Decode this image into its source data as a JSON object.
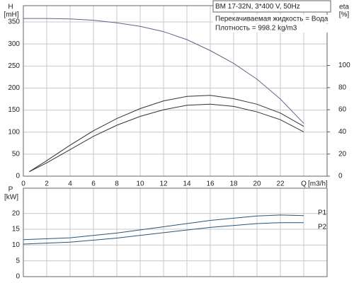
{
  "chart_data": [
    {
      "type": "line",
      "title": "BM 17-32N, 3*400 V, 50Hz",
      "annotations": [
        "Перекачиваемая жидкость = Вода",
        "Плотность = 998.2 kg/m3"
      ],
      "ylabel": "H",
      "yunit": "[mH]",
      "y2label": "eta",
      "y2unit": "[%]",
      "xunit": "[m3/h]",
      "xlim": [
        0,
        26
      ],
      "xticks": [
        0,
        2,
        4,
        6,
        8,
        10,
        12,
        14,
        16,
        18,
        20,
        22,
        {
          "value": 24,
          "label": "Q"
        }
      ],
      "ylim": [
        0,
        387
      ],
      "yticks": [
        0,
        50,
        100,
        150,
        200,
        250,
        300,
        350
      ],
      "y2lim": [
        0,
        154
      ],
      "y2ticks": [
        0,
        20,
        40,
        60,
        80,
        100
      ],
      "grid": true,
      "series": [
        {
          "color": "#5f6688",
          "x": [
            0,
            2,
            4,
            6,
            8,
            10,
            12,
            14,
            16,
            18,
            20,
            22,
            24
          ],
          "values": [
            358,
            358,
            357,
            354,
            348,
            340,
            328,
            310,
            285,
            256,
            220,
            175,
            120
          ]
        },
        {
          "color": "#333333",
          "axis": "y2",
          "x": [
            0.5,
            2,
            4,
            6,
            8,
            10,
            12,
            14,
            16,
            18,
            20,
            22,
            24
          ],
          "values": [
            4,
            14,
            28,
            41,
            52,
            61,
            68,
            72,
            73,
            70,
            65,
            57,
            45
          ]
        },
        {
          "color": "#333333",
          "axis": "y2",
          "x": [
            0.5,
            2,
            4,
            6,
            8,
            10,
            12,
            14,
            16,
            18,
            20,
            22,
            24
          ],
          "values": [
            4,
            12,
            24,
            36,
            46,
            54,
            60,
            64,
            65,
            63,
            58,
            51,
            40
          ]
        }
      ]
    },
    {
      "type": "line",
      "ylabel": "P",
      "yunit": "[kW]",
      "xlim": [
        0,
        26
      ],
      "xticks": [
        0,
        2,
        4,
        6,
        8,
        10,
        12,
        14,
        16,
        18,
        20,
        22,
        24
      ],
      "xtick_labels": false,
      "ylim": [
        0,
        28
      ],
      "yticks": [
        0,
        5,
        10,
        15,
        20
      ],
      "grid": true,
      "series": [
        {
          "name": "P1",
          "color": "#2b5575",
          "x": [
            0,
            4,
            8,
            12,
            16,
            20,
            22,
            24
          ],
          "values": [
            11.7,
            12.3,
            13.8,
            15.8,
            17.8,
            19.2,
            19.5,
            19.3
          ]
        },
        {
          "name": "P2",
          "color": "#2b5575",
          "x": [
            0,
            4,
            8,
            12,
            16,
            20,
            22,
            24
          ],
          "values": [
            10.3,
            10.9,
            12.2,
            13.9,
            15.6,
            16.8,
            17.1,
            17.1
          ]
        }
      ]
    }
  ]
}
